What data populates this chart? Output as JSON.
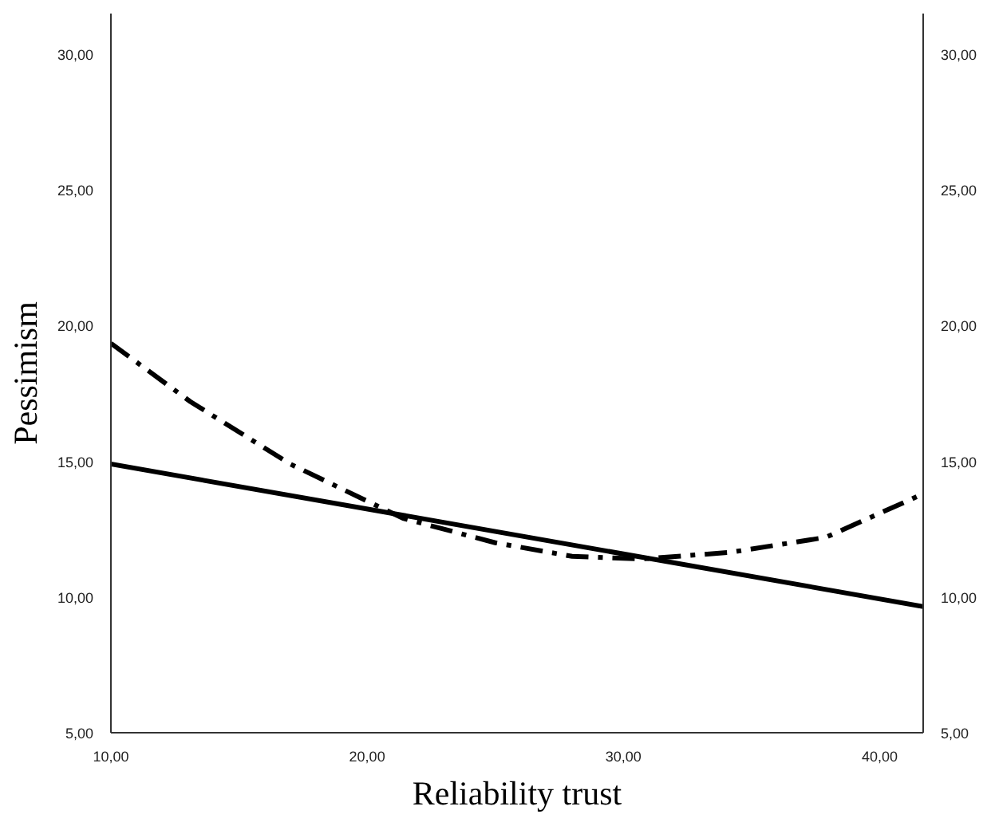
{
  "chart_data": {
    "type": "line",
    "xlabel": "Reliability trust",
    "ylabel": "Pessimism",
    "xlim": [
      10,
      41.7
    ],
    "ylim": [
      5,
      31.5
    ],
    "y2lim": [
      5,
      31.5
    ],
    "xticks": [
      {
        "value": 10,
        "label": "10,00"
      },
      {
        "value": 20,
        "label": "20,00"
      },
      {
        "value": 30,
        "label": "30,00"
      },
      {
        "value": 40,
        "label": "40,00"
      }
    ],
    "yticks": [
      {
        "value": 5,
        "label": "5,00"
      },
      {
        "value": 10,
        "label": "10,00"
      },
      {
        "value": 15,
        "label": "15,00"
      },
      {
        "value": 20,
        "label": "20,00"
      },
      {
        "value": 25,
        "label": "25,00"
      },
      {
        "value": 30,
        "label": "30,00"
      }
    ],
    "y2ticks": [
      {
        "value": 5,
        "label": "5,00"
      },
      {
        "value": 10,
        "label": "10,00"
      },
      {
        "value": 15,
        "label": "15,00"
      },
      {
        "value": 20,
        "label": "20,00"
      },
      {
        "value": 25,
        "label": "25,00"
      },
      {
        "value": 30,
        "label": "30,00"
      }
    ],
    "grid": false,
    "series": [
      {
        "color": "#000000",
        "line_style": "solid",
        "x": [
          10,
          41.7
        ],
        "values": [
          14.9,
          9.65
        ]
      },
      {
        "color": "#000000",
        "line_style": "dashdot",
        "x": [
          10,
          13.1,
          17,
          21.4,
          25,
          28,
          30.7,
          34.2,
          37.9,
          41.7
        ],
        "values": [
          19.35,
          17.2,
          14.9,
          12.9,
          12.0,
          11.5,
          11.4,
          11.65,
          12.2,
          13.8
        ]
      }
    ]
  }
}
